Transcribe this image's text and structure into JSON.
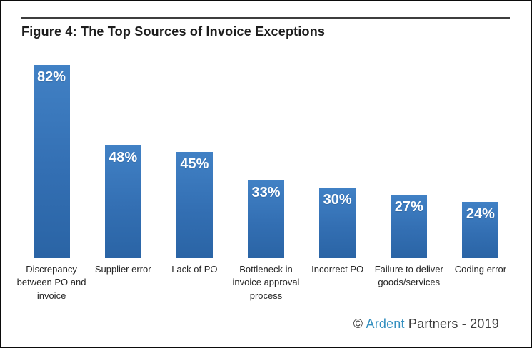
{
  "title": "Figure 4: The Top Sources of Invoice Exceptions",
  "footer": {
    "symbol": "©",
    "brand": "Ardent",
    "rest": "Partners - 2019"
  },
  "colors": {
    "bar_blue_top": "#4181c5",
    "bar_blue_bottom": "#2a64a5",
    "brand_blue": "#3490c0",
    "rule_gray": "#3d3d3d",
    "title_text": "#1c1c1c",
    "category_text": "#262626",
    "value_label_text": "#ffffff"
  },
  "chart_data": {
    "type": "bar",
    "title": "Figure 4: The Top Sources of Invoice Exceptions",
    "categories": [
      "Discrepancy between PO and invoice",
      "Supplier error",
      "Lack of PO",
      "Bottleneck in invoice approval process",
      "Incorrect PO",
      "Failure to deliver goods/services",
      "Coding error"
    ],
    "values": [
      82,
      48,
      45,
      33,
      30,
      27,
      24
    ],
    "value_labels": [
      "82%",
      "48%",
      "45%",
      "33%",
      "30%",
      "27%",
      "24%"
    ],
    "xlabel": "",
    "ylabel": "",
    "ylim": [
      0,
      90
    ],
    "grid": false,
    "legend": null,
    "axis_lines": false,
    "data_labels_position": "inside-top"
  }
}
